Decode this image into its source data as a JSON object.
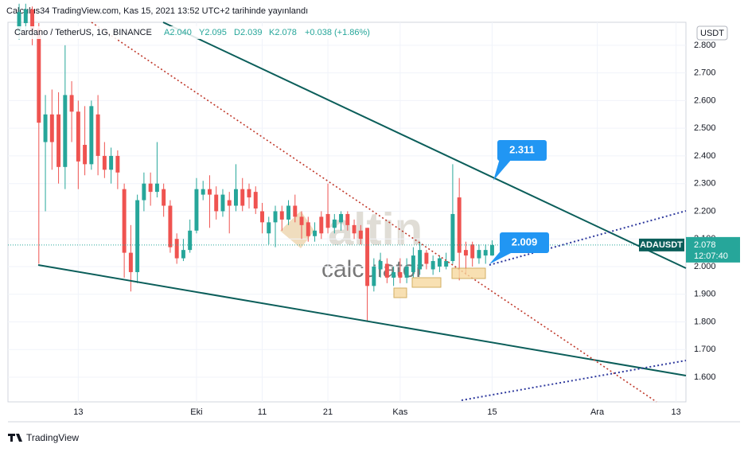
{
  "header": {
    "published": "Calculus34 TradingView.com, Kas 15, 2021 13:52 UTC+2 tarihinde yayınlandı",
    "symbol": "Cardano / TetherUS, 1G, BINANCE",
    "open": "A2.040",
    "high": "Y2.095",
    "low": "D2.039",
    "close": "K2.078",
    "change": "+0.038 (+1.86%)"
  },
  "watermark": {
    "brand": "altin",
    "sub": "calculator"
  },
  "footer": "TradingView",
  "chart_data": {
    "type": "candlestick",
    "currency": "USDT",
    "up_color": "#26a69a",
    "down_color": "#ef5350",
    "x": [
      4,
      5,
      6,
      7,
      8,
      9,
      10,
      11,
      12,
      13,
      14,
      15,
      16,
      17,
      18,
      19,
      20,
      21,
      22,
      23,
      24,
      25,
      26,
      27,
      28,
      29,
      30,
      31,
      32,
      33,
      34,
      35,
      36,
      37,
      38,
      39,
      40,
      41,
      42,
      43,
      44,
      45,
      46,
      47,
      48,
      49,
      50,
      51,
      52,
      53,
      54,
      55,
      56,
      57,
      58,
      59,
      60,
      61,
      62,
      63,
      64,
      65,
      66,
      67,
      68,
      69,
      70,
      71,
      72,
      73,
      74,
      75,
      76
    ],
    "open": [
      2.85,
      2.88,
      2.93,
      2.86,
      2.45,
      2.55,
      2.55,
      2.36,
      2.62,
      2.56,
      2.44,
      2.37,
      2.55,
      2.4,
      2.35,
      2.4,
      2.28,
      2.05,
      1.98,
      2.24,
      2.3,
      2.27,
      2.28,
      2.22,
      2.1,
      2.03,
      2.06,
      2.13,
      2.26,
      2.28,
      2.26,
      2.2,
      2.24,
      2.22,
      2.28,
      2.28,
      2.27,
      2.2,
      2.12,
      2.16,
      2.2,
      2.17,
      2.22,
      2.18,
      2.16,
      2.11,
      2.18,
      2.19,
      2.14,
      2.16,
      2.19,
      2.15,
      2.13,
      2.14,
      1.93,
      1.99,
      2.01,
      1.96,
      1.98,
      1.96,
      1.98,
      1.99,
      2.05,
      1.99,
      2.0,
      2.0,
      2.02,
      2.25,
      2.06,
      2.08,
      2.03,
      2.04,
      2.04
    ],
    "high": [
      2.95,
      2.95,
      2.94,
      2.88,
      2.62,
      2.64,
      2.63,
      2.8,
      2.67,
      2.6,
      2.58,
      2.6,
      2.62,
      2.45,
      2.43,
      2.42,
      2.3,
      2.15,
      2.26,
      2.34,
      2.34,
      2.45,
      2.3,
      2.24,
      2.12,
      2.1,
      2.17,
      2.32,
      2.31,
      2.33,
      2.29,
      2.28,
      2.27,
      2.37,
      2.32,
      2.3,
      2.29,
      2.23,
      2.18,
      2.22,
      2.22,
      2.24,
      2.26,
      2.2,
      2.18,
      2.16,
      2.2,
      2.3,
      2.19,
      2.2,
      2.2,
      2.17,
      2.15,
      2.14,
      2.03,
      2.05,
      2.03,
      2.0,
      2.03,
      2.03,
      2.07,
      2.09,
      2.06,
      2.04,
      2.04,
      2.05,
      2.37,
      2.32,
      2.09,
      2.09,
      2.08,
      2.08,
      2.095
    ],
    "low": [
      2.82,
      2.85,
      2.8,
      2.01,
      2.2,
      2.35,
      2.3,
      2.28,
      2.45,
      2.28,
      2.33,
      2.35,
      2.33,
      2.32,
      2.3,
      2.28,
      1.96,
      1.91,
      1.94,
      2.2,
      2.22,
      2.25,
      2.18,
      2.05,
      2.01,
      2.02,
      2.05,
      2.12,
      2.24,
      2.14,
      2.17,
      2.18,
      2.12,
      2.2,
      2.2,
      2.21,
      2.19,
      2.12,
      2.08,
      2.07,
      2.13,
      2.15,
      2.16,
      2.1,
      2.09,
      2.09,
      2.1,
      2.12,
      2.12,
      2.13,
      2.13,
      2.1,
      2.08,
      1.8,
      1.91,
      1.96,
      1.94,
      1.93,
      1.94,
      1.94,
      1.96,
      1.97,
      1.99,
      1.97,
      1.98,
      1.99,
      2.01,
      1.95,
      1.97,
      2.0,
      2.01,
      2.01,
      2.039
    ],
    "close": [
      2.92,
      2.93,
      2.85,
      2.52,
      2.55,
      2.45,
      2.36,
      2.62,
      2.56,
      2.38,
      2.37,
      2.58,
      2.4,
      2.35,
      2.4,
      2.34,
      2.05,
      1.98,
      2.24,
      2.3,
      2.27,
      2.3,
      2.22,
      2.07,
      2.03,
      2.06,
      2.13,
      2.28,
      2.28,
      2.26,
      2.2,
      2.26,
      2.22,
      2.28,
      2.22,
      2.25,
      2.21,
      2.16,
      2.16,
      2.2,
      2.17,
      2.22,
      2.18,
      2.15,
      2.11,
      2.13,
      2.12,
      2.14,
      2.17,
      2.19,
      2.15,
      2.12,
      2.1,
      1.93,
      2.0,
      2.02,
      1.96,
      1.98,
      1.96,
      2.0,
      2.04,
      2.06,
      2.01,
      2.02,
      2.03,
      2.02,
      2.19,
      2.05,
      2.04,
      2.03,
      2.06,
      2.06,
      2.078
    ],
    "xlim": [
      2.3,
      105.5
    ],
    "ylim": [
      1.511,
      2.883
    ],
    "xticks": [
      13,
      31,
      41,
      51,
      62,
      76,
      92,
      104
    ],
    "xtick_labels": [
      "13",
      "Eki",
      "11",
      "21",
      "Kas",
      "15",
      "Ara",
      "13"
    ],
    "yticks": [
      {
        "value": 1.6,
        "label": "1.600"
      },
      {
        "value": 1.7,
        "label": "1.700"
      },
      {
        "value": 1.8,
        "label": "1.800"
      },
      {
        "value": 1.9,
        "label": "1.900"
      },
      {
        "value": 2.0,
        "label": "2.000"
      },
      {
        "value": 2.1,
        "label": "2.100"
      },
      {
        "value": 2.2,
        "label": "2.200"
      },
      {
        "value": 2.3,
        "label": "2.300"
      },
      {
        "value": 2.4,
        "label": "2.400"
      },
      {
        "value": 2.5,
        "label": "2.500"
      },
      {
        "value": 2.6,
        "label": "2.600"
      },
      {
        "value": 2.7,
        "label": "2.700"
      },
      {
        "value": 2.8,
        "label": "2.800"
      }
    ],
    "annotations": [
      {
        "text": "2.311",
        "value": 2.311
      },
      {
        "text": "2.009",
        "value": 2.009
      }
    ],
    "price_label": {
      "symbol": "ADAUSDT",
      "price": "2.078",
      "countdown": "12:07:40"
    }
  }
}
